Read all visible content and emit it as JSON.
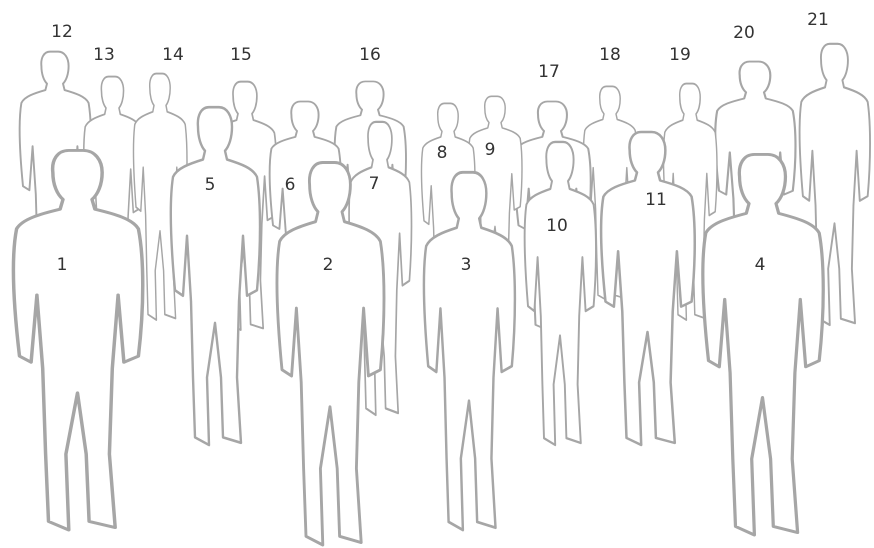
{
  "labels": [
    "1",
    "2",
    "3",
    "4",
    "5",
    "6",
    "7",
    "8",
    "9",
    "10",
    "11",
    "12",
    "13",
    "14",
    "15",
    "16",
    "17",
    "18",
    "19",
    "20",
    "21"
  ]
}
